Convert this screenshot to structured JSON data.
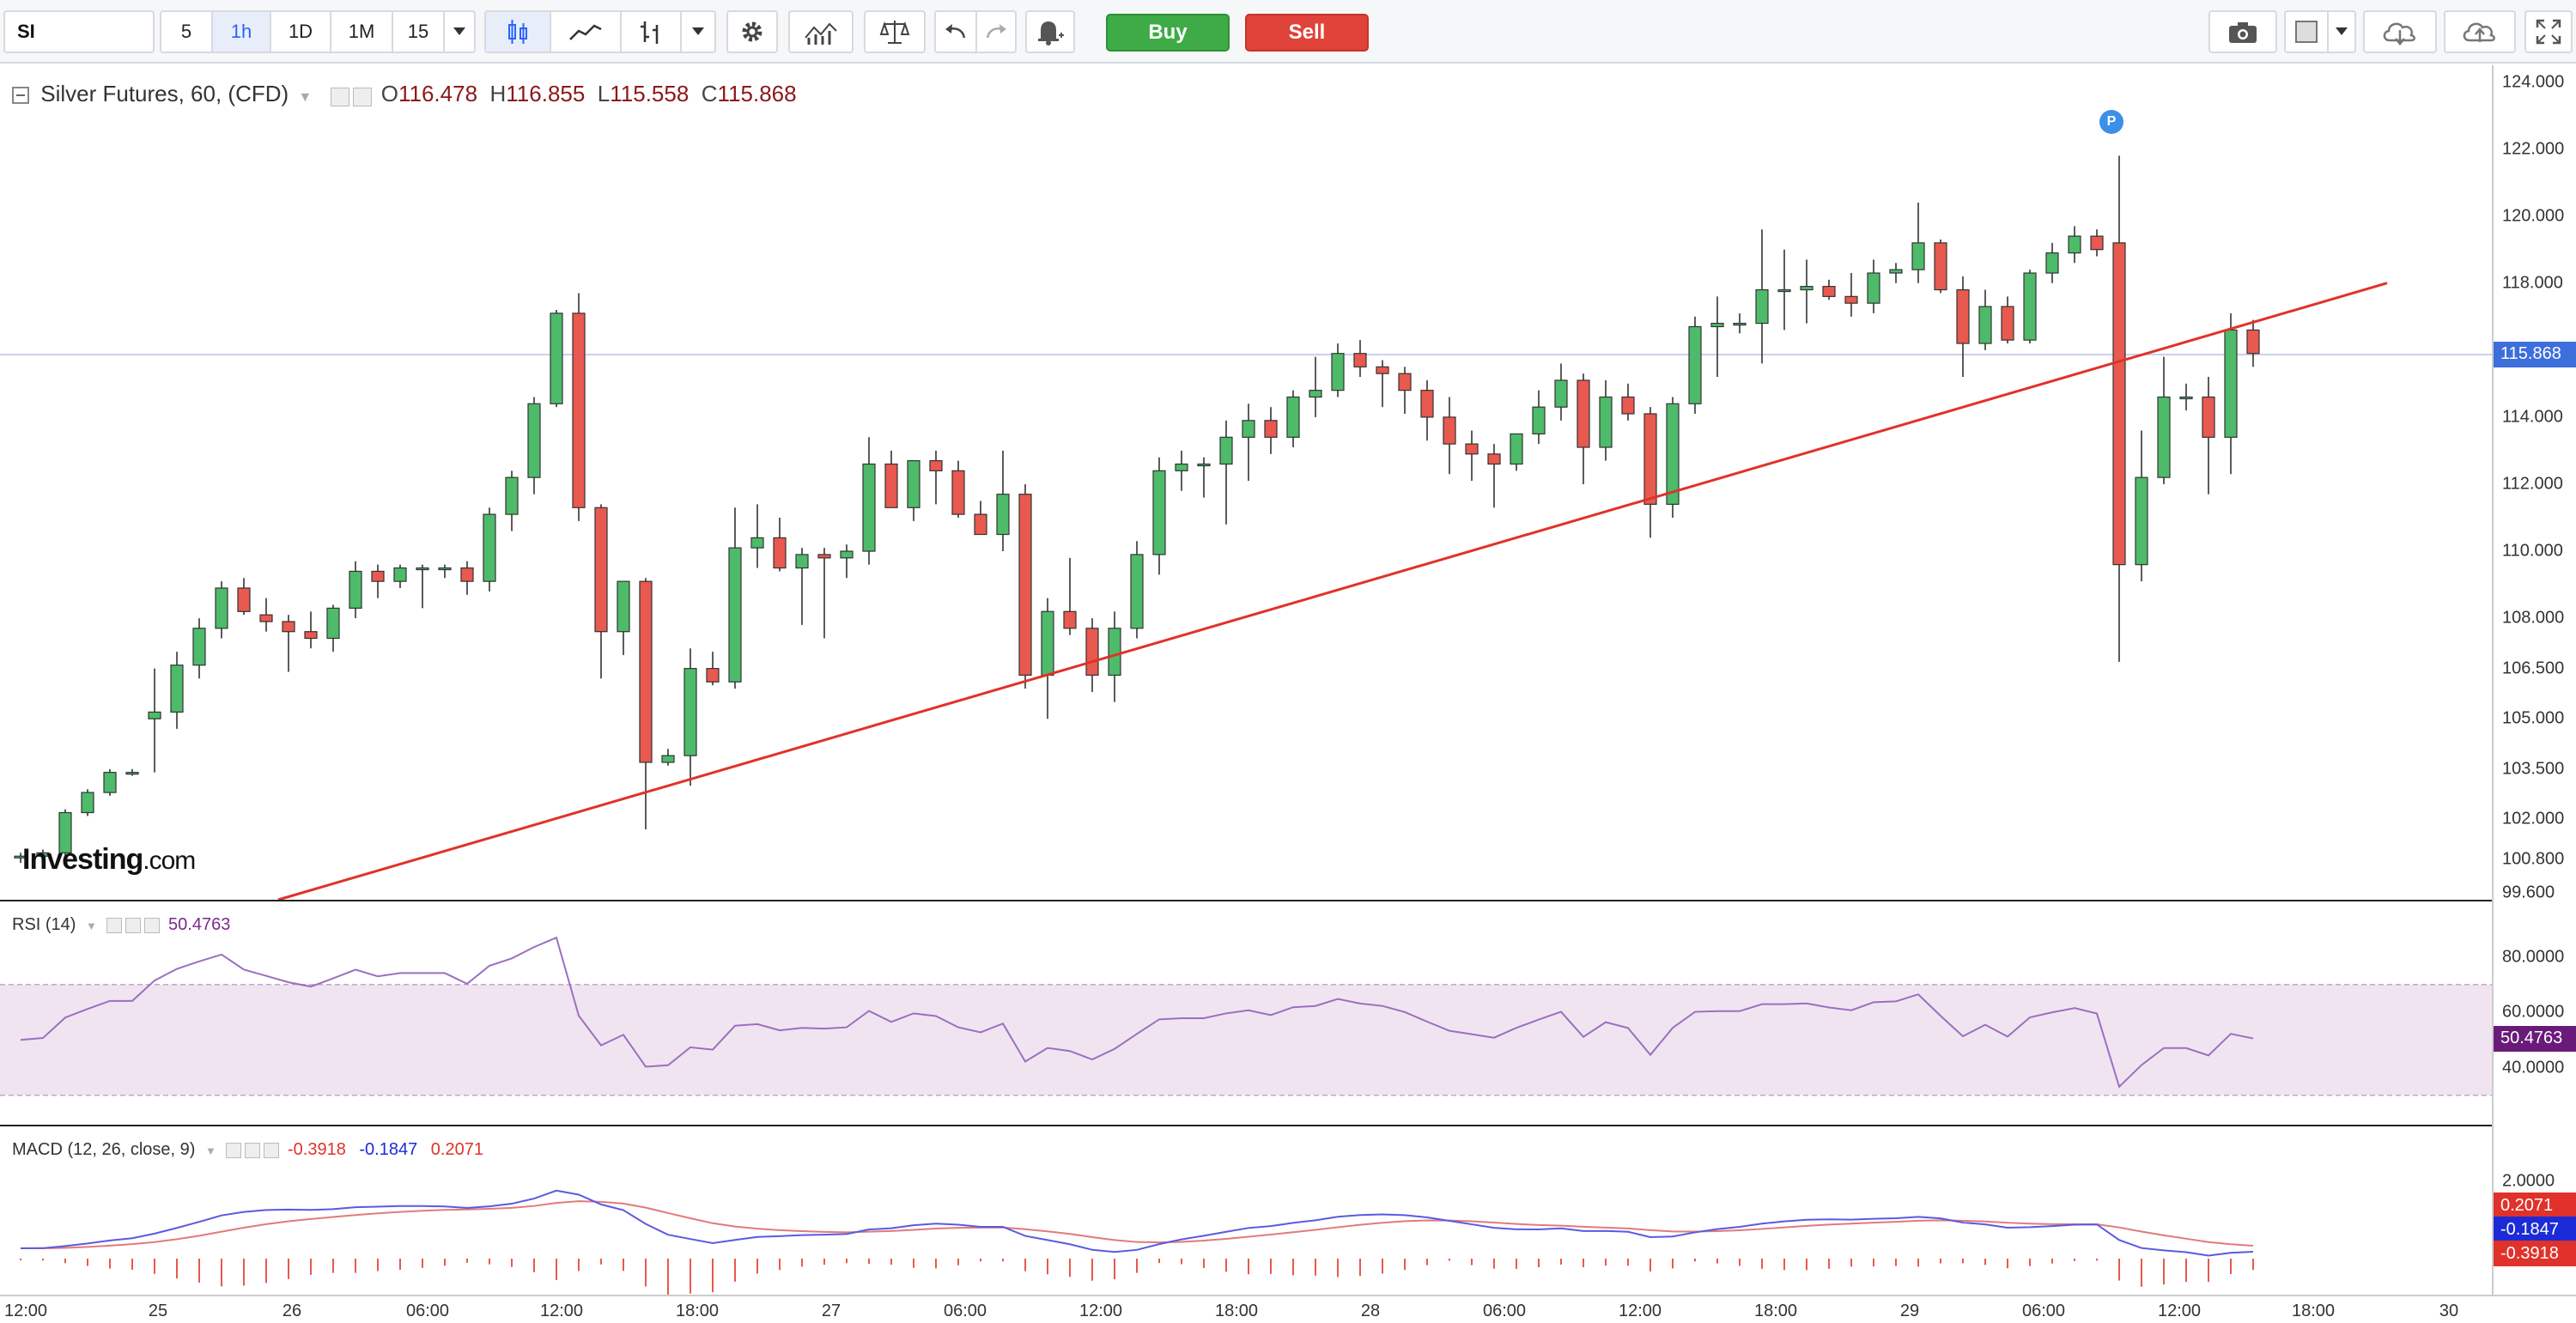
{
  "toolbar": {
    "symbol": "SI",
    "intervals": [
      {
        "label": "5",
        "active": false
      },
      {
        "label": "1h",
        "active": true
      },
      {
        "label": "1D",
        "active": false
      },
      {
        "label": "1M",
        "active": false
      },
      {
        "label": "15",
        "active": false
      }
    ],
    "buy_label": "Buy",
    "sell_label": "Sell"
  },
  "legend": {
    "title": "Silver Futures, 60, (CFD)",
    "open_label": "O",
    "open": "116.478",
    "high_label": "H",
    "high": "116.855",
    "low_label": "L",
    "low": "115.558",
    "close_label": "C",
    "close": "115.868"
  },
  "rsi": {
    "label": "RSI (14)",
    "value": "50.4763"
  },
  "macd": {
    "label": "MACD (12, 26, close, 9)",
    "v1": "-0.3918",
    "v2": "-0.1847",
    "v3": "0.2071"
  },
  "logo": {
    "brand": "Investing",
    "suffix": ".com"
  },
  "marker": {
    "label": "P"
  },
  "price_axis": {
    "labels": [
      "124.000",
      "122.000",
      "120.000",
      "118.000",
      "114.000",
      "112.000",
      "110.000",
      "108.000",
      "106.500",
      "105.000",
      "103.500",
      "102.000",
      "100.800",
      "99.600"
    ],
    "current_tag": "115.868"
  },
  "rsi_axis": {
    "labels": [
      "80.0000",
      "60.0000",
      "40.0000"
    ],
    "current_tag": "50.4763"
  },
  "macd_axis": {
    "labels": [
      "2.0000"
    ],
    "tags": [
      "0.2071",
      "-0.1847",
      "-0.3918"
    ]
  },
  "time_axis": {
    "labels": [
      "12:00",
      "25",
      "26",
      "06:00",
      "12:00",
      "18:00",
      "27",
      "06:00",
      "12:00",
      "18:00",
      "28",
      "06:00",
      "12:00",
      "18:00",
      "29",
      "06:00",
      "12:00",
      "18:00",
      "30"
    ]
  },
  "colors": {
    "up": "#4dbb6a",
    "down": "#e8594f",
    "trend": "#e0322a",
    "rsi": "#9b6fc0",
    "macd": "#5a5ae0",
    "signal": "#e07b7b",
    "tag_purple": "#6a1b7a",
    "tag_blue": "#1c2bd8",
    "tag_red": "#e0322a",
    "tag_price": "#3d6fdc"
  },
  "chart_data": {
    "type": "candlestick",
    "title": "Silver Futures, 60, (CFD)",
    "ylim": [
      99.6,
      124.5
    ],
    "candles": [
      [
        100.9,
        101.0,
        100.7,
        100.9
      ],
      [
        100.9,
        101.1,
        100.7,
        101.0
      ],
      [
        101.0,
        102.3,
        100.9,
        102.2
      ],
      [
        102.2,
        102.9,
        102.1,
        102.8
      ],
      [
        102.8,
        103.5,
        102.7,
        103.4
      ],
      [
        103.4,
        103.5,
        103.3,
        103.4
      ],
      [
        105.0,
        106.5,
        103.4,
        105.2
      ],
      [
        105.2,
        107.0,
        104.7,
        106.6
      ],
      [
        106.6,
        108.0,
        106.2,
        107.7
      ],
      [
        107.7,
        109.1,
        107.4,
        108.9
      ],
      [
        108.9,
        109.2,
        108.1,
        108.2
      ],
      [
        108.1,
        108.6,
        107.6,
        107.9
      ],
      [
        107.9,
        108.1,
        106.4,
        107.6
      ],
      [
        107.6,
        108.2,
        107.1,
        107.4
      ],
      [
        107.4,
        108.4,
        107.0,
        108.3
      ],
      [
        108.3,
        109.7,
        108.0,
        109.4
      ],
      [
        109.4,
        109.6,
        108.6,
        109.1
      ],
      [
        109.1,
        109.6,
        108.9,
        109.5
      ],
      [
        109.5,
        109.6,
        108.3,
        109.5
      ],
      [
        109.5,
        109.6,
        109.2,
        109.5
      ],
      [
        109.5,
        109.7,
        108.7,
        109.1
      ],
      [
        109.1,
        111.3,
        108.8,
        111.1
      ],
      [
        111.1,
        112.4,
        110.6,
        112.2
      ],
      [
        112.2,
        114.6,
        111.7,
        114.4
      ],
      [
        114.4,
        117.2,
        114.3,
        117.1
      ],
      [
        117.1,
        117.7,
        110.9,
        111.3
      ],
      [
        111.3,
        111.4,
        106.2,
        107.6
      ],
      [
        107.6,
        109.0,
        106.9,
        109.1
      ],
      [
        109.1,
        109.2,
        101.7,
        103.7
      ],
      [
        103.7,
        104.1,
        103.6,
        103.9
      ],
      [
        103.9,
        107.1,
        103.0,
        106.5
      ],
      [
        106.5,
        107.0,
        106.0,
        106.1
      ],
      [
        106.1,
        111.3,
        105.9,
        110.1
      ],
      [
        110.1,
        111.4,
        109.5,
        110.4
      ],
      [
        110.4,
        111.0,
        109.4,
        109.5
      ],
      [
        109.5,
        110.1,
        107.8,
        109.9
      ],
      [
        109.9,
        110.1,
        107.4,
        109.8
      ],
      [
        109.8,
        110.2,
        109.2,
        110.0
      ],
      [
        110.0,
        113.4,
        109.6,
        112.6
      ],
      [
        112.6,
        113.0,
        111.3,
        111.3
      ],
      [
        111.3,
        112.5,
        110.9,
        112.7
      ],
      [
        112.7,
        113.0,
        111.4,
        112.4
      ],
      [
        112.4,
        112.7,
        111.0,
        111.1
      ],
      [
        111.1,
        111.5,
        110.6,
        110.5
      ],
      [
        110.5,
        113.0,
        110.0,
        111.7
      ],
      [
        111.7,
        112.0,
        105.9,
        106.3
      ],
      [
        106.3,
        108.6,
        105.0,
        108.2
      ],
      [
        108.2,
        109.8,
        107.5,
        107.7
      ],
      [
        107.7,
        108.0,
        105.8,
        106.3
      ],
      [
        106.3,
        108.2,
        105.5,
        107.7
      ],
      [
        107.7,
        110.3,
        107.4,
        109.9
      ],
      [
        109.9,
        112.8,
        109.3,
        112.4
      ],
      [
        112.4,
        113.0,
        111.8,
        112.6
      ],
      [
        112.6,
        112.8,
        111.6,
        112.6
      ],
      [
        112.6,
        113.9,
        110.8,
        113.4
      ],
      [
        113.4,
        114.4,
        112.1,
        113.9
      ],
      [
        113.9,
        114.3,
        112.9,
        113.4
      ],
      [
        113.4,
        114.8,
        113.1,
        114.6
      ],
      [
        114.6,
        115.8,
        114.0,
        114.8
      ],
      [
        114.8,
        116.2,
        114.6,
        115.9
      ],
      [
        115.9,
        116.3,
        115.2,
        115.5
      ],
      [
        115.5,
        115.7,
        114.3,
        115.3
      ],
      [
        115.3,
        115.5,
        114.1,
        114.8
      ],
      [
        114.8,
        115.1,
        113.3,
        114.0
      ],
      [
        114.0,
        114.6,
        112.3,
        113.2
      ],
      [
        113.2,
        113.6,
        112.1,
        112.9
      ],
      [
        112.9,
        113.2,
        111.3,
        112.6
      ],
      [
        112.6,
        113.5,
        112.4,
        113.5
      ],
      [
        113.5,
        114.8,
        113.2,
        114.3
      ],
      [
        114.3,
        115.6,
        113.9,
        115.1
      ],
      [
        115.1,
        115.3,
        112.0,
        113.1
      ],
      [
        113.1,
        115.1,
        112.7,
        114.6
      ],
      [
        114.6,
        115.0,
        113.9,
        114.1
      ],
      [
        114.1,
        114.3,
        110.4,
        111.4
      ],
      [
        111.4,
        114.6,
        111.0,
        114.4
      ],
      [
        114.4,
        117.0,
        114.1,
        116.7
      ],
      [
        116.7,
        117.6,
        115.2,
        116.8
      ],
      [
        116.8,
        117.1,
        116.5,
        116.8
      ],
      [
        116.8,
        119.6,
        115.6,
        117.8
      ],
      [
        117.8,
        119.0,
        116.6,
        117.8
      ],
      [
        117.8,
        118.7,
        116.8,
        117.9
      ],
      [
        117.9,
        118.1,
        117.5,
        117.6
      ],
      [
        117.6,
        118.3,
        117.0,
        117.4
      ],
      [
        117.4,
        118.7,
        117.1,
        118.3
      ],
      [
        118.3,
        118.6,
        118.0,
        118.4
      ],
      [
        118.4,
        120.4,
        118.0,
        119.2
      ],
      [
        119.2,
        119.3,
        117.7,
        117.8
      ],
      [
        117.8,
        118.2,
        115.2,
        116.2
      ],
      [
        116.2,
        117.8,
        116.0,
        117.3
      ],
      [
        117.3,
        117.6,
        116.2,
        116.3
      ],
      [
        116.3,
        118.4,
        116.2,
        118.3
      ],
      [
        118.3,
        119.2,
        118.0,
        118.9
      ],
      [
        118.9,
        119.7,
        118.6,
        119.4
      ],
      [
        119.4,
        119.6,
        118.8,
        119.0
      ],
      [
        119.2,
        121.8,
        106.7,
        109.6
      ],
      [
        109.6,
        113.6,
        109.1,
        112.2
      ],
      [
        112.2,
        115.8,
        112.0,
        114.6
      ],
      [
        114.6,
        115.0,
        114.2,
        114.6
      ],
      [
        114.6,
        115.2,
        111.7,
        113.4
      ],
      [
        113.4,
        117.1,
        112.3,
        116.6
      ],
      [
        116.6,
        116.9,
        115.5,
        115.9
      ]
    ],
    "trendline": [
      [
        0,
        99.6
      ],
      [
        106,
        118.0
      ]
    ],
    "current_price": 115.868
  }
}
